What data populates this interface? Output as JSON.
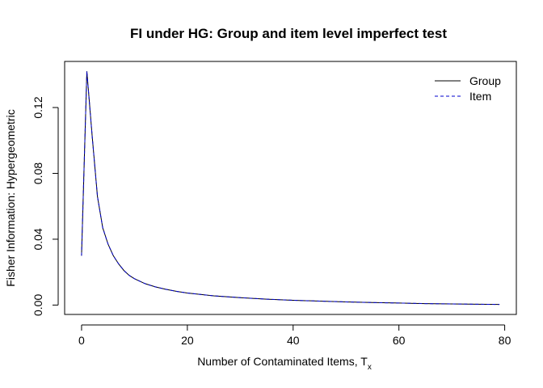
{
  "chart_data": {
    "type": "line",
    "title": "FI under HG: Group and item level imperfect test",
    "xlabel": "Number of Contaminated Items, ",
    "xlabel_subscript_base": "T",
    "xlabel_subscript": "x",
    "ylabel": "Fisher Information: Hypergeometric",
    "xlim": [
      -3.2,
      82.2
    ],
    "ylim": [
      -0.0057,
      0.148
    ],
    "x_ticks": [
      0,
      20,
      40,
      60,
      80
    ],
    "y_ticks": [
      0.0,
      0.04,
      0.08,
      0.12
    ],
    "x_tick_labels": [
      "0",
      "20",
      "40",
      "60",
      "80"
    ],
    "y_tick_labels": [
      "0.00",
      "0.04",
      "0.08",
      "0.12"
    ],
    "grid": false,
    "legend_position": "top-right",
    "series": [
      {
        "name": "Group",
        "color": "#000000",
        "line_style": "solid",
        "x": [
          0,
          1,
          2,
          3,
          4,
          5,
          6,
          7,
          8,
          9,
          10,
          12,
          14,
          16,
          18,
          20,
          25,
          30,
          35,
          40,
          45,
          50,
          55,
          60,
          65,
          70,
          75,
          79
        ],
        "y": [
          0.03,
          0.142,
          0.103,
          0.066,
          0.047,
          0.037,
          0.03,
          0.025,
          0.021,
          0.018,
          0.016,
          0.013,
          0.011,
          0.0095,
          0.0083,
          0.0073,
          0.0056,
          0.0045,
          0.0036,
          0.0029,
          0.0024,
          0.0019,
          0.0015,
          0.0012,
          0.0009,
          0.0007,
          0.0005,
          0.0004
        ]
      },
      {
        "name": "Item",
        "color": "#0000cc",
        "line_style": "dashed",
        "x": [
          0,
          1,
          2,
          3,
          4,
          5,
          6,
          7,
          8,
          9,
          10,
          12,
          14,
          16,
          18,
          20,
          25,
          30,
          35,
          40,
          45,
          50,
          55,
          60,
          65,
          70,
          75,
          79
        ],
        "y": [
          0.03,
          0.142,
          0.103,
          0.066,
          0.047,
          0.037,
          0.03,
          0.025,
          0.021,
          0.018,
          0.016,
          0.013,
          0.011,
          0.0095,
          0.0083,
          0.0073,
          0.0056,
          0.0045,
          0.0036,
          0.0029,
          0.0024,
          0.0019,
          0.0015,
          0.0012,
          0.0009,
          0.0007,
          0.0005,
          0.0004
        ]
      }
    ]
  }
}
